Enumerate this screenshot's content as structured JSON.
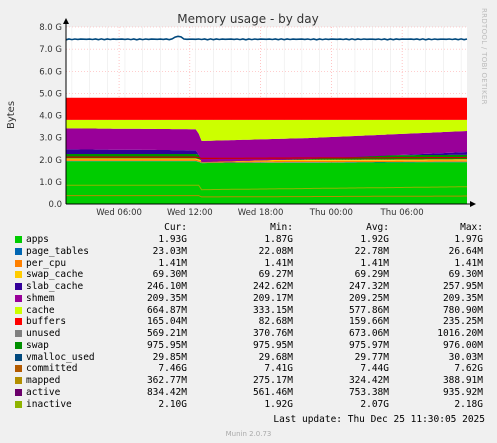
{
  "chart_data": {
    "type": "area",
    "title": "Memory usage - by day",
    "ylabel": "Bytes",
    "ylim": [
      0,
      8.0
    ],
    "y_ticks": [
      "0.0",
      "1.0 G",
      "2.0 G",
      "3.0 G",
      "4.0 G",
      "5.0 G",
      "6.0 G",
      "7.0 G",
      "8.0 G"
    ],
    "y_tick_values": [
      0,
      1,
      2,
      3,
      4,
      5,
      6,
      7,
      8
    ],
    "x_ticks": [
      {
        "label": "Wed 06:00",
        "hour": 6
      },
      {
        "label": "Wed 12:00",
        "hour": 12
      },
      {
        "label": "Wed 18:00",
        "hour": 18
      },
      {
        "label": "Thu 00:00",
        "hour": 24
      },
      {
        "label": "Thu 06:00",
        "hour": 30
      }
    ],
    "xlim_hours": [
      1.5,
      35.5
    ],
    "grid": true,
    "series": [
      {
        "name": "apps",
        "color": "#00cc00",
        "cur": "1.93G",
        "min": "1.87G",
        "avg": "1.92G",
        "max": "1.97G"
      },
      {
        "name": "page_tables",
        "color": "#0066b3",
        "cur": "23.03M",
        "min": "22.08M",
        "avg": "22.78M",
        "max": "26.64M"
      },
      {
        "name": "per_cpu",
        "color": "#ff8000",
        "cur": "1.41M",
        "min": "1.41M",
        "avg": "1.41M",
        "max": "1.41M"
      },
      {
        "name": "swap_cache",
        "color": "#ffcc00",
        "cur": "69.30M",
        "min": "69.27M",
        "avg": "69.29M",
        "max": "69.30M"
      },
      {
        "name": "slab_cache",
        "color": "#330099",
        "cur": "246.10M",
        "min": "242.62M",
        "avg": "247.32M",
        "max": "257.95M"
      },
      {
        "name": "shmem",
        "color": "#990099",
        "cur": "209.35M",
        "min": "209.17M",
        "avg": "209.25M",
        "max": "209.35M"
      },
      {
        "name": "cache",
        "color": "#ccff00",
        "cur": "664.87M",
        "min": "333.15M",
        "avg": "577.86M",
        "max": "780.90M"
      },
      {
        "name": "buffers",
        "color": "#ff0000",
        "cur": "165.04M",
        "min": "82.68M",
        "avg": "159.66M",
        "max": "235.25M"
      },
      {
        "name": "unused",
        "color": "#808080",
        "cur": "569.21M",
        "min": "370.76M",
        "avg": "673.06M",
        "max": "1016.20M"
      },
      {
        "name": "swap",
        "color": "#008f00",
        "cur": "975.95M",
        "min": "975.95M",
        "avg": "975.97M",
        "max": "976.00M"
      },
      {
        "name": "vmalloc_used",
        "color": "#00487d",
        "cur": "29.85M",
        "min": "29.68M",
        "avg": "29.77M",
        "max": "30.03M"
      },
      {
        "name": "committed",
        "color": "#b35a00",
        "cur": "7.46G",
        "min": "7.41G",
        "avg": "7.44G",
        "max": "7.62G"
      },
      {
        "name": "mapped",
        "color": "#b38f00",
        "cur": "362.77M",
        "min": "275.17M",
        "avg": "324.42M",
        "max": "388.91M"
      },
      {
        "name": "active",
        "color": "#6b006b",
        "cur": "834.42M",
        "min": "561.46M",
        "avg": "753.38M",
        "max": "935.92M"
      },
      {
        "name": "inactive",
        "color": "#8fb300",
        "cur": "2.10G",
        "min": "1.92G",
        "avg": "2.07G",
        "max": "2.18G"
      }
    ],
    "stack_order": [
      {
        "name": "apps",
        "color": "#00cc00",
        "left": 0.3,
        "right": 0.22
      },
      {
        "name": "page_tables",
        "color": "#0066b3",
        "left": 0.02,
        "right": 0.02
      },
      {
        "name": "per_cpu",
        "color": "#ff8000",
        "left": 0.01,
        "right": 0.01
      },
      {
        "name": "swap_cache",
        "color": "#ffcc00",
        "left": 0.07,
        "right": 0.07
      },
      {
        "name": "slab_cache",
        "color": "#330099",
        "left": 0.24,
        "right": 0.24
      },
      {
        "name": "shmem",
        "color": "#990099",
        "left": 0.21,
        "right": 0.21
      },
      {
        "name": "cache",
        "color": "#ccff00",
        "left": 0.2,
        "right": 0.12
      },
      {
        "name": "buffers",
        "color": "#ff0000",
        "left": 0.1,
        "right": 0.1
      },
      {
        "name": "unused",
        "color": "#808080",
        "left": 0.05,
        "right": 0.05
      },
      {
        "name": "swap",
        "color": "#008f00",
        "left": 0.95,
        "right": 0.95
      }
    ],
    "stack_top_profile": [
      {
        "hour": 1.5,
        "active": 3.42,
        "cache": 2.1,
        "inactive": 2.12
      },
      {
        "hour": 12.6,
        "active": 3.38,
        "cache": 2.1,
        "inactive": 2.12
      },
      {
        "hour": 13.0,
        "active": 2.85,
        "cache": 1.9,
        "inactive": 2.06
      },
      {
        "hour": 22.0,
        "active": 2.98,
        "cache": 1.98,
        "inactive": 2.08
      },
      {
        "hour": 35.5,
        "active": 3.3,
        "cache": 2.03,
        "inactive": 2.1
      }
    ],
    "swap_band": [
      3.8,
      4.8
    ],
    "swap_top_band": [
      3.8,
      3.8
    ],
    "committed_level": 7.44
  },
  "header": {
    "cur": "Cur:",
    "min": "Min:",
    "avg": "Avg:",
    "max": "Max:"
  },
  "last_update": "Last update: Thu Dec 25 11:30:05 2025",
  "footer": "Munin 2.0.73",
  "side_label": "RRDTOOL / TOBI OETIKER"
}
